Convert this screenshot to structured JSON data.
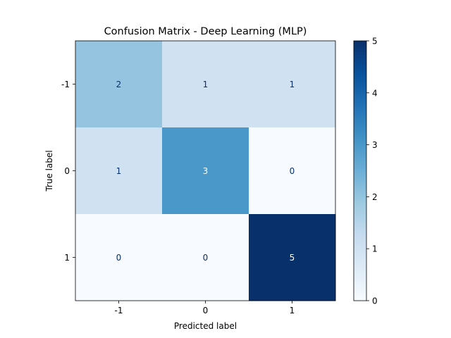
{
  "chart_data": {
    "type": "heatmap",
    "title": "Confusion Matrix - Deep Learning (MLP)",
    "xlabel": "Predicted label",
    "ylabel": "True label",
    "x_categories": [
      "-1",
      "0",
      "1"
    ],
    "y_categories": [
      "-1",
      "0",
      "1"
    ],
    "matrix": [
      [
        2,
        1,
        1
      ],
      [
        1,
        3,
        0
      ],
      [
        0,
        0,
        5
      ]
    ],
    "colormap": "Blues",
    "colorbar": {
      "range": [
        0,
        5
      ],
      "ticks": [
        "0",
        "1",
        "2",
        "3",
        "4",
        "5"
      ]
    },
    "grid": false
  }
}
